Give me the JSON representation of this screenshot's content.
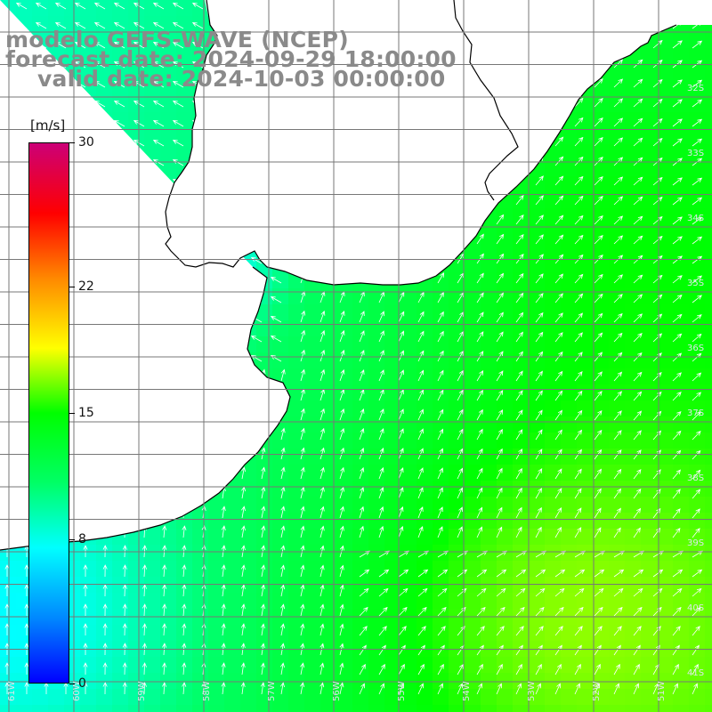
{
  "titles": {
    "line1": "modelo GEFS-WAVE (NCEP)",
    "line2": "forecast date: 2024-09-29 18:00:00",
    "line3": "valid date: 2024-10-03 00:00:00"
  },
  "colorbar": {
    "unit": "[m/s]",
    "ticks": [
      {
        "value": 30,
        "label": "30"
      },
      {
        "value": 22,
        "label": "22"
      },
      {
        "value": 15,
        "label": "15"
      },
      {
        "value": 8,
        "label": "8"
      },
      {
        "value": 0,
        "label": "0"
      }
    ],
    "min": 0,
    "max": 30,
    "colors": [
      "#0000ff",
      "#0088ff",
      "#00ffff",
      "#00ff66",
      "#00ff00",
      "#ffff00",
      "#ff8800",
      "#ff0000",
      "#cc0077"
    ]
  },
  "axis_labels": {
    "lat": [
      "32S",
      "33S",
      "34S",
      "35S",
      "36S",
      "37S",
      "38S",
      "39S",
      "40S",
      "41S"
    ],
    "lon": [
      "61W",
      "60W",
      "59W",
      "58W",
      "57W",
      "56W",
      "55W",
      "54W",
      "53W",
      "52W",
      "51W"
    ]
  },
  "map": {
    "land_color": "#ffffff",
    "grid_color": "#777777",
    "coast_color": "#000000",
    "arrow_color": "#ffffff"
  }
}
